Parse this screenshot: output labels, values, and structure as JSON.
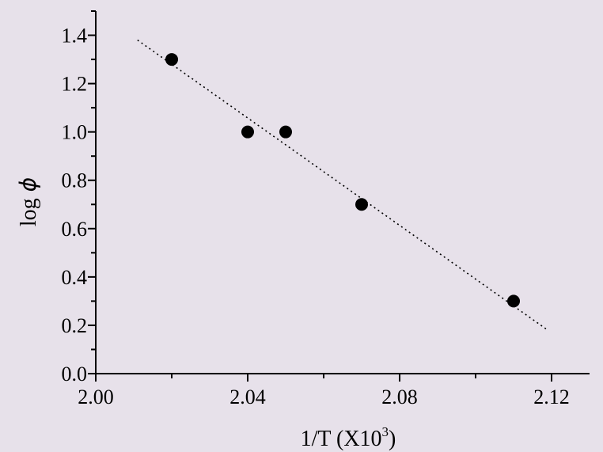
{
  "chart_data": {
    "type": "scatter",
    "xlabel": "1/T (X10",
    "xlabel_superscript": "3",
    "xlabel_close": ")",
    "ylabel": "log",
    "ylabel_symbol": "ϕ",
    "xlim": [
      2.0,
      2.13
    ],
    "ylim": [
      0.0,
      1.5
    ],
    "x_ticks": [
      "2.00",
      "2.04",
      "2.08",
      "2.12"
    ],
    "y_ticks": [
      "0.0",
      "0.2",
      "0.4",
      "0.6",
      "0.8",
      "1.0",
      "1.2",
      "1.4"
    ],
    "grid": false,
    "series": [
      {
        "points": [
          {
            "x": 2.02,
            "y": 1.3
          },
          {
            "x": 2.04,
            "y": 1.0
          },
          {
            "x": 2.05,
            "y": 1.0
          },
          {
            "x": 2.07,
            "y": 0.7
          },
          {
            "x": 2.11,
            "y": 0.3
          }
        ],
        "marker_color": "#000000"
      }
    ],
    "fit_line": {
      "style": "dotted",
      "color": "#000000",
      "start": {
        "x": 2.011,
        "y": 1.38
      },
      "end": {
        "x": 2.119,
        "y": 0.18
      }
    }
  }
}
